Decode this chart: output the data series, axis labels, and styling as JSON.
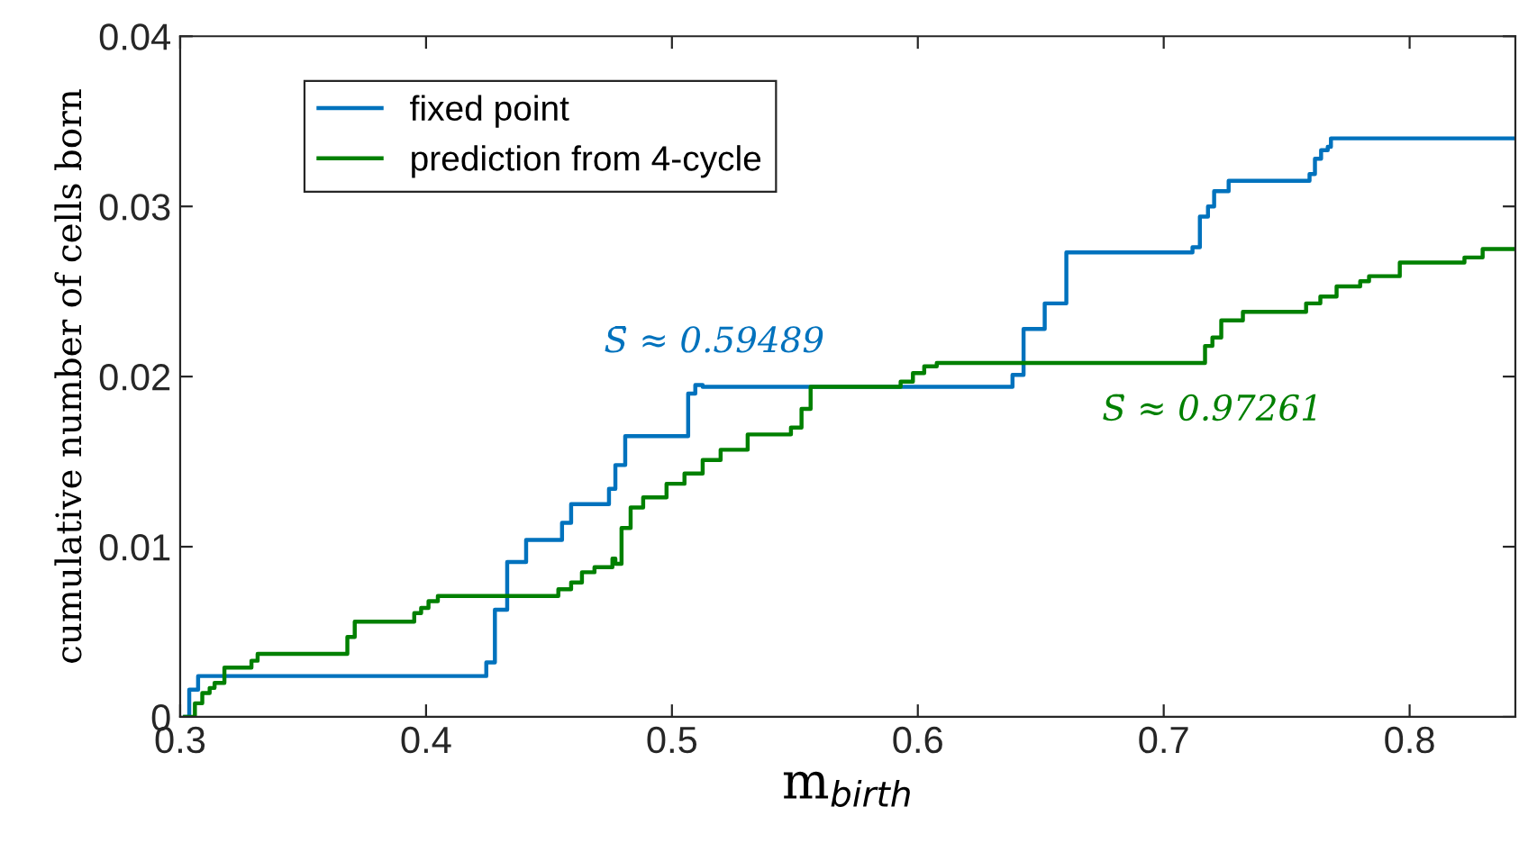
{
  "chart_data": {
    "type": "step",
    "xlabel": "m$_{birth}$",
    "ylabel": "cumulative number of cells born",
    "xlim": [
      0.3,
      0.843
    ],
    "ylim": [
      0,
      0.04
    ],
    "xticks": [
      0.3,
      0.4,
      0.5,
      0.6,
      0.7,
      0.8
    ],
    "yticks": [
      0,
      0.01,
      0.02,
      0.03,
      0.04
    ],
    "legend": "top left",
    "grid": false,
    "series": [
      {
        "name": "fixed point",
        "color": "#0072bd",
        "x": [
          0.302,
          0.3037,
          0.3073,
          0.4245,
          0.428,
          0.433,
          0.4407,
          0.4553,
          0.459,
          0.4744,
          0.477,
          0.481,
          0.5066,
          0.5095,
          0.5125,
          0.6385,
          0.643,
          0.6516,
          0.6604,
          0.7117,
          0.7147,
          0.718,
          0.7205,
          0.7264,
          0.7593,
          0.7615,
          0.764,
          0.7667,
          0.768,
          0.843
        ],
        "values": [
          0,
          0.0016,
          0.0024,
          0.0032,
          0.0063,
          0.0091,
          0.0104,
          0.0114,
          0.0125,
          0.0134,
          0.0148,
          0.0165,
          0.019,
          0.0195,
          0.0194,
          0.0201,
          0.0228,
          0.0243,
          0.0273,
          0.0276,
          0.0294,
          0.03,
          0.0309,
          0.0315,
          0.0319,
          0.0328,
          0.0333,
          0.0335,
          0.034,
          0.034
        ]
      },
      {
        "name": "prediction from 4-cycle",
        "color": "#008000",
        "x": [
          0.302,
          0.306,
          0.309,
          0.312,
          0.314,
          0.318,
          0.329,
          0.3315,
          0.368,
          0.371,
          0.3952,
          0.398,
          0.401,
          0.4048,
          0.4538,
          0.459,
          0.4634,
          0.4685,
          0.4758,
          0.477,
          0.4795,
          0.4832,
          0.4883,
          0.4978,
          0.5051,
          0.5125,
          0.5198,
          0.5308,
          0.5484,
          0.5527,
          0.5564,
          0.593,
          0.598,
          0.6026,
          0.6077,
          0.7168,
          0.7198,
          0.7234,
          0.7322,
          0.7579,
          0.7637,
          0.7703,
          0.7799,
          0.7835,
          0.796,
          0.8223,
          0.8297,
          0.843
        ],
        "values": [
          0,
          0.0008,
          0.0014,
          0.0017,
          0.002,
          0.0029,
          0.0033,
          0.0037,
          0.0047,
          0.0056,
          0.0061,
          0.0064,
          0.0068,
          0.0071,
          0.0075,
          0.0079,
          0.0085,
          0.0088,
          0.0093,
          0.009,
          0.0111,
          0.0123,
          0.0129,
          0.0137,
          0.0143,
          0.0151,
          0.0157,
          0.0166,
          0.017,
          0.0181,
          0.0194,
          0.0197,
          0.0202,
          0.0206,
          0.0208,
          0.0218,
          0.0223,
          0.0233,
          0.0238,
          0.0243,
          0.0247,
          0.0253,
          0.0256,
          0.0259,
          0.0267,
          0.027,
          0.0275,
          0.0275
        ]
      }
    ],
    "annotations": [
      "S̄ ≈ 0.59489",
      "S̄ ≈ 0.97261"
    ]
  }
}
